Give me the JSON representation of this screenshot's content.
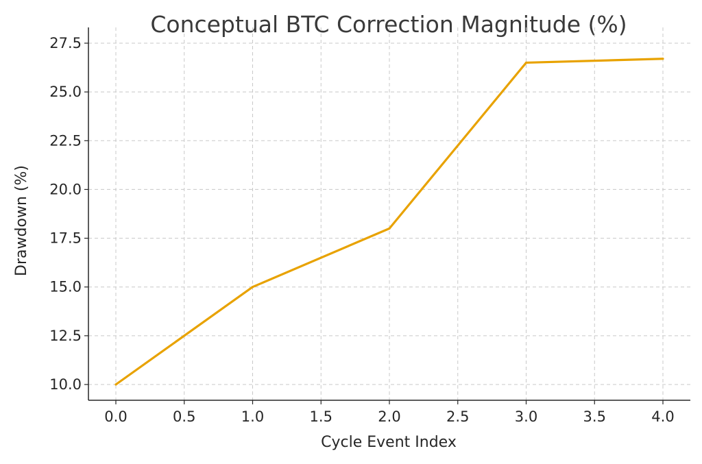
{
  "chart_data": {
    "type": "line",
    "title": "Conceptual BTC Correction Magnitude (%)",
    "xlabel": "Cycle Event Index",
    "ylabel": "Drawdown (%)",
    "x": [
      0,
      1,
      2,
      3,
      4
    ],
    "series": [
      {
        "name": "Drawdown",
        "values": [
          10,
          15,
          18,
          26.5,
          26.7
        ],
        "color": "#E8A200"
      }
    ],
    "xlim": [
      -0.2,
      4.2
    ],
    "ylim": [
      9.2,
      27.5
    ],
    "xticks": [
      "0.0",
      "0.5",
      "1.0",
      "1.5",
      "2.0",
      "2.5",
      "3.0",
      "3.5",
      "4.0"
    ],
    "yticks": [
      "10.0",
      "12.5",
      "15.0",
      "17.5",
      "20.0",
      "22.5",
      "25.0",
      "27.5"
    ],
    "grid": true
  }
}
